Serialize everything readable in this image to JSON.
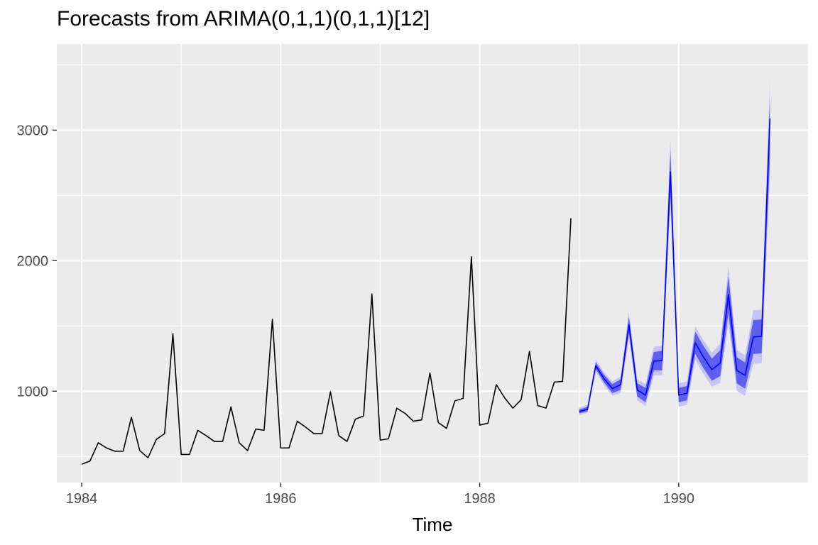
{
  "chart_data": {
    "type": "line",
    "title": "Forecasts from ARIMA(0,1,1)(0,1,1)[12]",
    "xlabel": "Time",
    "ylabel": "",
    "xlim": [
      1983.75,
      1991.3
    ],
    "ylim": [
      300,
      3660
    ],
    "x_ticks": [
      1984,
      1986,
      1988,
      1990
    ],
    "y_ticks": [
      1000,
      2000,
      3000
    ],
    "grid": true,
    "legend": "none",
    "colors": {
      "panel": "#ebebeb",
      "grid": "#ffffff",
      "observed": "#000000",
      "forecast": "#0000ff",
      "band80": "#5e5ef0",
      "band95": "#c4c4f5"
    },
    "start": [
      1984,
      1
    ],
    "frequency": 12,
    "observed": [
      440,
      465,
      605,
      565,
      540,
      540,
      800,
      545,
      490,
      630,
      675,
      1440,
      515,
      515,
      700,
      660,
      615,
      615,
      880,
      605,
      545,
      710,
      700,
      1550,
      565,
      565,
      770,
      725,
      675,
      675,
      995,
      660,
      615,
      785,
      810,
      1745,
      625,
      635,
      870,
      830,
      770,
      780,
      1140,
      760,
      715,
      925,
      945,
      2030,
      740,
      755,
      1050,
      950,
      870,
      935,
      1305,
      890,
      870,
      1070,
      1075,
      2325
    ],
    "forecast_start": [
      1989,
      1
    ],
    "forecast": [
      845,
      860,
      1195,
      1095,
      1020,
      1050,
      1510,
      1010,
      970,
      1230,
      1235,
      2680,
      970,
      985,
      1370,
      1260,
      1165,
      1215,
      1740,
      1160,
      1120,
      1415,
      1420,
      3090
    ],
    "lo80": [
      830,
      845,
      1170,
      1065,
      985,
      1010,
      1450,
      960,
      915,
      1160,
      1160,
      2520,
      915,
      930,
      1285,
      1175,
      1080,
      1115,
      1600,
      1060,
      1020,
      1285,
      1290,
      2790
    ],
    "hi80": [
      860,
      880,
      1220,
      1125,
      1055,
      1090,
      1570,
      1060,
      1025,
      1300,
      1310,
      2840,
      1025,
      1040,
      1455,
      1345,
      1250,
      1315,
      1880,
      1260,
      1220,
      1545,
      1550,
      3230
    ],
    "lo95": [
      815,
      835,
      1150,
      1045,
      965,
      985,
      1410,
      930,
      885,
      1120,
      1120,
      2430,
      880,
      895,
      1240,
      1130,
      1035,
      1065,
      1520,
      1005,
      965,
      1210,
      1215,
      2650
    ],
    "hi95": [
      875,
      895,
      1245,
      1145,
      1075,
      1115,
      1610,
      1090,
      1055,
      1340,
      1350,
      2930,
      1060,
      1075,
      1500,
      1390,
      1295,
      1365,
      1960,
      1315,
      1275,
      1620,
      1625,
      3380
    ]
  }
}
